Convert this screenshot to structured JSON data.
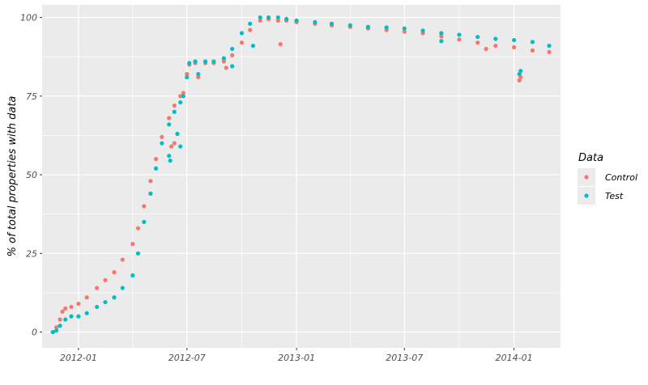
{
  "chart_data": {
    "type": "scatter",
    "title": "",
    "xlabel": "",
    "ylabel": "% of total properties with data",
    "x_ticks": [
      "2012-01",
      "2012-07",
      "2013-01",
      "2013-07",
      "2014-01"
    ],
    "y_ticks": [
      "0",
      "25",
      "50",
      "75",
      "100"
    ],
    "xlim": [
      "2011-11-01",
      "2014-03-20"
    ],
    "ylim": [
      -5,
      104
    ],
    "grid": true,
    "legend": {
      "title": "Data",
      "position": "right"
    },
    "series": [
      {
        "name": "Control",
        "color": "#F8766D",
        "points": [
          [
            "2011-11-19",
            0
          ],
          [
            "2011-11-25",
            1.5
          ],
          [
            "2011-12-01",
            4
          ],
          [
            "2011-12-05",
            6.5
          ],
          [
            "2011-12-10",
            7.5
          ],
          [
            "2011-12-20",
            8
          ],
          [
            "2012-01-01",
            9
          ],
          [
            "2012-01-15",
            11
          ],
          [
            "2012-02-01",
            14
          ],
          [
            "2012-02-15",
            16.5
          ],
          [
            "2012-03-01",
            19
          ],
          [
            "2012-03-15",
            23
          ],
          [
            "2012-04-01",
            28
          ],
          [
            "2012-04-10",
            33
          ],
          [
            "2012-04-20",
            40
          ],
          [
            "2012-05-01",
            48
          ],
          [
            "2012-05-10",
            55
          ],
          [
            "2012-05-20",
            62
          ],
          [
            "2012-06-01",
            68
          ],
          [
            "2012-06-10",
            72
          ],
          [
            "2012-06-20",
            75
          ],
          [
            "2012-06-25",
            76
          ],
          [
            "2012-07-01",
            82
          ],
          [
            "2012-07-05",
            85
          ],
          [
            "2012-07-15",
            85.5
          ],
          [
            "2012-08-01",
            85.5
          ],
          [
            "2012-08-15",
            85.5
          ],
          [
            "2012-09-01",
            86
          ],
          [
            "2012-09-15",
            88
          ],
          [
            "2012-10-01",
            92
          ],
          [
            "2012-10-15",
            96
          ],
          [
            "2012-11-01",
            99
          ],
          [
            "2012-11-15",
            99.5
          ],
          [
            "2012-12-01",
            99
          ],
          [
            "2012-12-15",
            99
          ],
          [
            "2013-01-01",
            98.5
          ],
          [
            "2013-02-01",
            98
          ],
          [
            "2013-03-01",
            97.5
          ],
          [
            "2013-04-01",
            97
          ],
          [
            "2013-05-01",
            96.5
          ],
          [
            "2013-06-01",
            96
          ],
          [
            "2013-07-01",
            95.5
          ],
          [
            "2013-08-01",
            95
          ],
          [
            "2013-09-01",
            94
          ],
          [
            "2013-10-01",
            93
          ],
          [
            "2013-11-01",
            92
          ],
          [
            "2013-12-01",
            91
          ],
          [
            "2014-01-01",
            90.5
          ],
          [
            "2014-02-01",
            89.5
          ],
          [
            "2014-03-01",
            89
          ]
        ],
        "outliers": [
          [
            "2012-06-05",
            59
          ],
          [
            "2012-06-10",
            60
          ],
          [
            "2012-07-20",
            81
          ],
          [
            "2012-09-05",
            84
          ],
          [
            "2012-12-05",
            91.5
          ],
          [
            "2013-11-15",
            90
          ],
          [
            "2014-01-10",
            80
          ],
          [
            "2014-01-12",
            81
          ]
        ]
      },
      {
        "name": "Test",
        "color": "#00BFC4",
        "points": [
          [
            "2011-11-19",
            0
          ],
          [
            "2011-11-25",
            0.5
          ],
          [
            "2011-12-01",
            2
          ],
          [
            "2011-12-10",
            4
          ],
          [
            "2011-12-20",
            5
          ],
          [
            "2012-01-01",
            5
          ],
          [
            "2012-01-15",
            6
          ],
          [
            "2012-02-01",
            8
          ],
          [
            "2012-02-15",
            9.5
          ],
          [
            "2012-03-01",
            11
          ],
          [
            "2012-03-15",
            14
          ],
          [
            "2012-04-01",
            18
          ],
          [
            "2012-04-10",
            25
          ],
          [
            "2012-04-20",
            35
          ],
          [
            "2012-05-01",
            44
          ],
          [
            "2012-05-10",
            52
          ],
          [
            "2012-05-20",
            60
          ],
          [
            "2012-06-01",
            66
          ],
          [
            "2012-06-10",
            70
          ],
          [
            "2012-06-20",
            73
          ],
          [
            "2012-06-25",
            75
          ],
          [
            "2012-07-01",
            81
          ],
          [
            "2012-07-05",
            85.5
          ],
          [
            "2012-07-15",
            86
          ],
          [
            "2012-08-01",
            86
          ],
          [
            "2012-08-15",
            86
          ],
          [
            "2012-09-01",
            87
          ],
          [
            "2012-09-15",
            90
          ],
          [
            "2012-10-01",
            95
          ],
          [
            "2012-10-15",
            98
          ],
          [
            "2012-11-01",
            100
          ],
          [
            "2012-11-15",
            100
          ],
          [
            "2012-12-01",
            100
          ],
          [
            "2012-12-15",
            99.5
          ],
          [
            "2013-01-01",
            99
          ],
          [
            "2013-02-01",
            98.5
          ],
          [
            "2013-03-01",
            98
          ],
          [
            "2013-04-01",
            97.5
          ],
          [
            "2013-05-01",
            97
          ],
          [
            "2013-06-01",
            96.8
          ],
          [
            "2013-07-01",
            96.5
          ],
          [
            "2013-08-01",
            95.8
          ],
          [
            "2013-09-01",
            95
          ],
          [
            "2013-10-01",
            94.5
          ],
          [
            "2013-11-01",
            93.8
          ],
          [
            "2013-12-01",
            93.2
          ],
          [
            "2014-01-01",
            92.8
          ],
          [
            "2014-02-01",
            92.2
          ],
          [
            "2014-03-01",
            91
          ]
        ],
        "outliers": [
          [
            "2012-06-01",
            56
          ],
          [
            "2012-06-03",
            54.5
          ],
          [
            "2012-06-15",
            63
          ],
          [
            "2012-06-20",
            59
          ],
          [
            "2012-07-20",
            82
          ],
          [
            "2012-09-15",
            84.5
          ],
          [
            "2012-10-20",
            91
          ],
          [
            "2013-09-01",
            92.5
          ],
          [
            "2014-01-10",
            82
          ],
          [
            "2014-01-12",
            83
          ]
        ]
      }
    ]
  }
}
